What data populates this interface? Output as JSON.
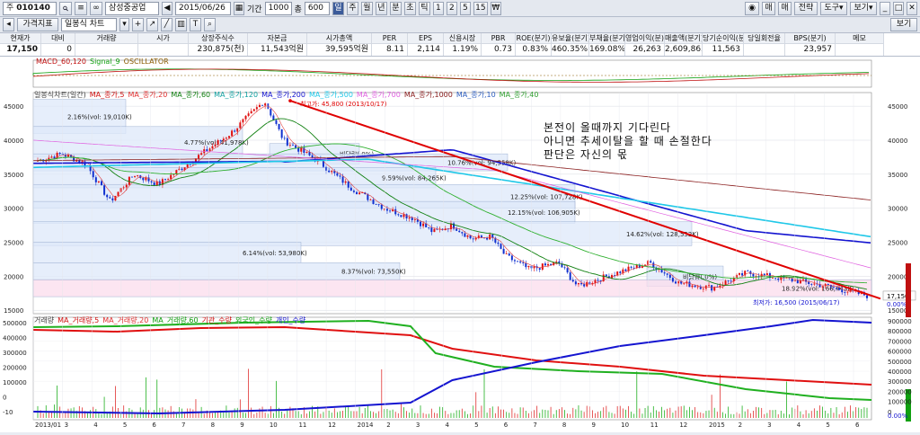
{
  "toolbar": {
    "code_prefix": "주",
    "code": "010140",
    "company": "삼성중공업",
    "date": "2015/06/26",
    "period_label": "기간",
    "period_value": "1000",
    "count_label": "총",
    "count_value": "600",
    "period_buttons": [
      "일",
      "주",
      "월",
      "년",
      "분",
      "초",
      "틱",
      "1",
      "2",
      "5",
      "15"
    ],
    "active_period": "일",
    "right_buttons": [
      "매",
      "매",
      "전략",
      "도구",
      "보기"
    ]
  },
  "toolbar2": {
    "indicator_tab": "가격지표",
    "chart_select": "일봉식 차트",
    "side_button": "보기"
  },
  "quote": {
    "headers": [
      "현재가",
      "대비",
      "거래량",
      "시가",
      "상장주식수",
      "자본금",
      "시가총액",
      "PER",
      "EPS",
      "신용시장",
      "PBR",
      "ROE(분기)",
      "유보율(분기)",
      "부채율(분기)",
      "영업이익(분)",
      "매출액(분기)",
      "당기순이익(분",
      "당일회전율",
      "BPS(분기)",
      "메모"
    ],
    "values": [
      "17,150",
      "0",
      "",
      "",
      "230,875(천)",
      "11,543억원",
      "39,595억원",
      "8.11",
      "2,114",
      "1.19%",
      "0.73",
      "0.83%",
      "460.35%",
      "169.08%",
      "26,263",
      "2,609,863",
      "11,563",
      "",
      "23,957",
      ""
    ]
  },
  "macd": {
    "legend": [
      "MACD_60,120",
      "Signal_9",
      "OSCILLATOR"
    ]
  },
  "price_panel": {
    "legend": [
      "일봉식차트(일간)",
      "MA_종가,5",
      "MA_종가,20",
      "MA_종가,60",
      "MA_종가,120",
      "MA_종가,200",
      "MA_종가,500",
      "MA_종가,700",
      "MA_종가,1000",
      "MA_종가,10",
      "MA_종가,40"
    ],
    "annotations": {
      "high": "최고가: 45,800 (2013/10/17)",
      "low": "최저가: 16,500 (2015/06/17)",
      "memo_line1": "본전이 올때까지 기다린다",
      "memo_line2": "아니면 추세이탈을 할 때 손절한다",
      "memo_line3": "판단은 자신의 몫",
      "current_price": "17,150",
      "pct_zero": "0.00%"
    },
    "boxes": [
      {
        "label": "2.16%(vol: 19,010K)"
      },
      {
        "label": "4.77%(vol: 41,978K)"
      },
      {
        "label": "비당량(.0%)"
      },
      {
        "label": "10.76%(vol: 94,558K)"
      },
      {
        "label": "9.59%(vol: 84,265K)"
      },
      {
        "label": "12.25%(vol: 107,728K)"
      },
      {
        "label": "12.15%(vol: 106,905K)"
      },
      {
        "label": "14.62%(vol: 128,552K)"
      },
      {
        "label": "6.14%(vol: 53,980K)"
      },
      {
        "label": "8.37%(vol: 73,550K)"
      },
      {
        "label": "비당량(.0%)"
      },
      {
        "label": "18.92%(vol: 166,443K)"
      }
    ],
    "y_ticks": [
      "45000",
      "40000",
      "35000",
      "30000",
      "25000",
      "20000",
      "15000"
    ]
  },
  "volume_panel": {
    "legend": [
      "거래량",
      "MA_거래량,5",
      "MA_거래량,20",
      "MA_거래량,60",
      "기관_수량",
      "외국인_수량",
      "개인_수량"
    ],
    "left_ticks": [
      "500000",
      "400000",
      "300000",
      "200000",
      "100000",
      "0",
      "-10"
    ],
    "right_ticks": [
      "900000",
      "800000",
      "700000",
      "600000",
      "500000",
      "400000",
      "300000",
      "200000",
      "100000",
      "0"
    ],
    "right_pct": "0.00%"
  },
  "x_axis": [
    "2013/01",
    "3",
    "4",
    "5",
    "6",
    "7",
    "8",
    "9",
    "10",
    "11",
    "12",
    "2014",
    "2",
    "3",
    "4",
    "5",
    "6",
    "7",
    "8",
    "9",
    "10",
    "11",
    "12",
    "2015",
    "2",
    "3",
    "4",
    "5",
    "6"
  ],
  "colors": {
    "up": "#e01010",
    "down": "#1030d0",
    "trend": "#e00000",
    "ma200": "#1414d0",
    "ma500": "#20c8e8",
    "ma1000": "#8b2020",
    "ma700": "#e060e0",
    "box_blue": "#dde8fa",
    "box_pink": "#fbdcec"
  }
}
